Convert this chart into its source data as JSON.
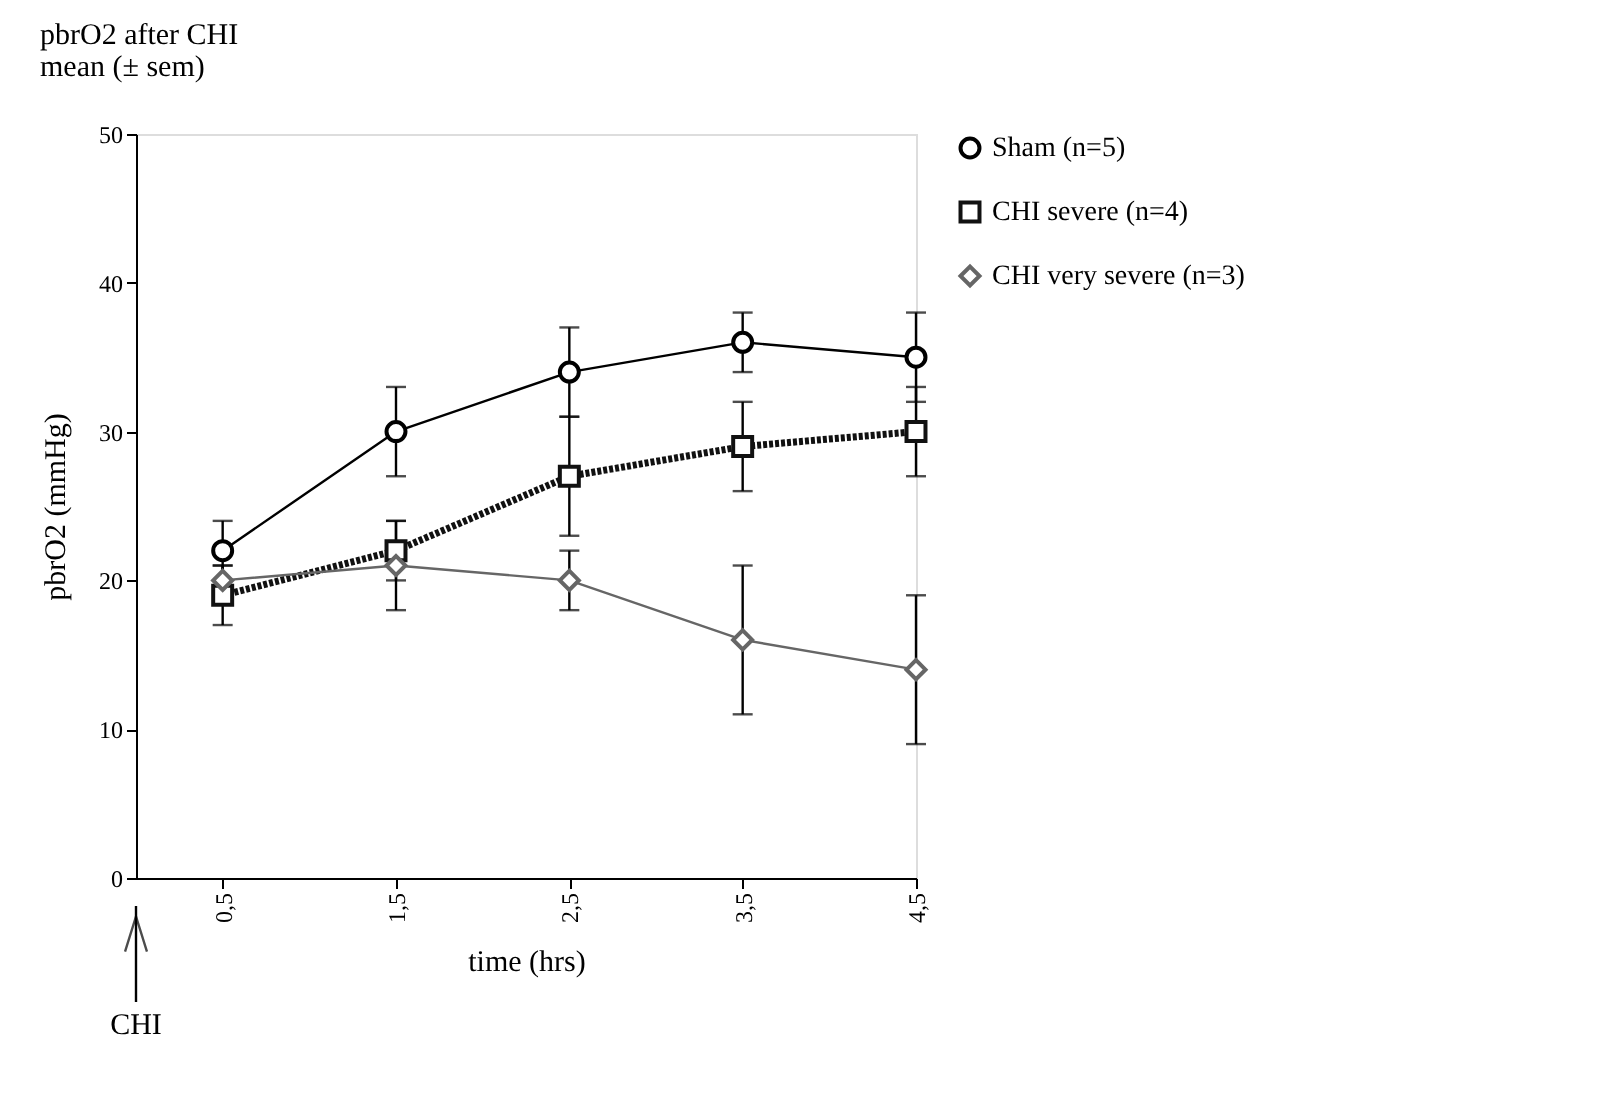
{
  "chart_data": {
    "type": "line",
    "title": "pbrO2 after CHI",
    "subtitle": "mean (± sem)",
    "xlabel": "time (hrs)",
    "ylabel": "pbrO2 (mmHg)",
    "x": [
      0.5,
      1.5,
      2.5,
      3.5,
      4.5
    ],
    "xlim": [
      0,
      4.5
    ],
    "xticks": [
      {
        "value": 0.5,
        "label": "0,5"
      },
      {
        "value": 1.5,
        "label": "1,5"
      },
      {
        "value": 2.5,
        "label": "2,5"
      },
      {
        "value": 3.5,
        "label": "3,5"
      },
      {
        "value": 4.5,
        "label": "4,5"
      }
    ],
    "ylim": [
      0,
      50
    ],
    "yticks": [
      0,
      10,
      20,
      30,
      40,
      50
    ],
    "grid": false,
    "legend": "right",
    "series": [
      {
        "name": "Sham (n=5)",
        "color": "#000000",
        "marker": "circle",
        "line_style": "solid",
        "values": [
          22,
          30,
          34,
          36,
          35
        ],
        "errors": [
          2,
          3,
          3,
          2,
          3
        ]
      },
      {
        "name": "CHI severe (n=4)",
        "color": "#111111",
        "marker": "square",
        "line_style": "dotted",
        "values": [
          19,
          22,
          27,
          29,
          30
        ],
        "errors": [
          2,
          2,
          4,
          3,
          3
        ]
      },
      {
        "name": "CHI very severe (n=3)",
        "color": "#666666",
        "marker": "diamond",
        "line_style": "solid",
        "values": [
          20,
          21,
          20,
          16,
          14
        ],
        "errors": [
          1,
          3,
          2,
          5,
          5
        ]
      }
    ],
    "annotations": [
      "CHI"
    ]
  }
}
